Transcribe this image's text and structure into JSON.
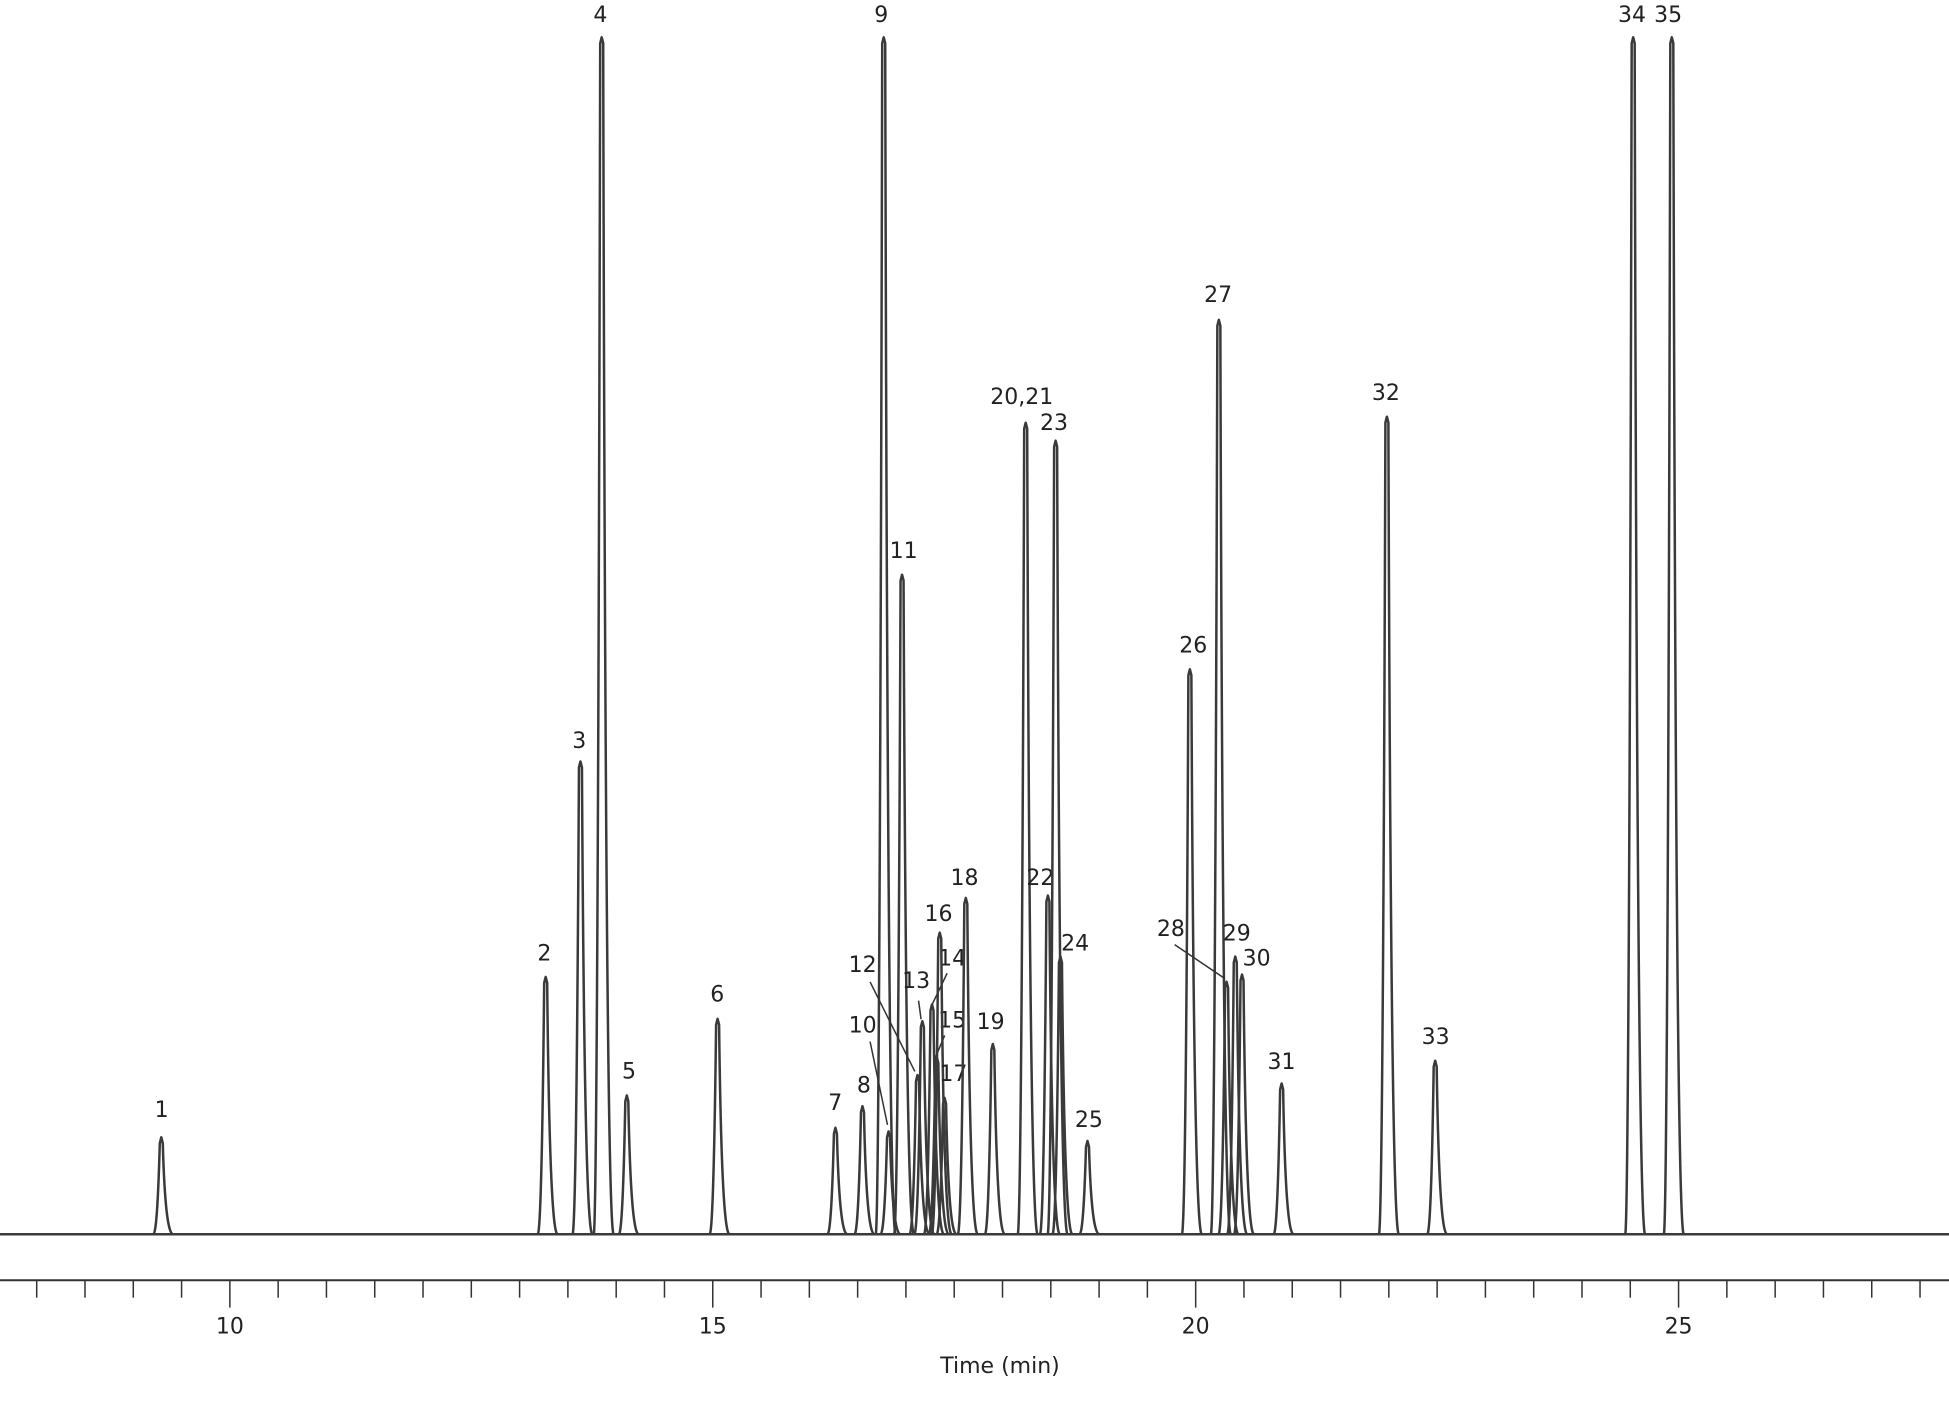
{
  "chart_data": {
    "type": "chromatogram",
    "x_label": "Time (min)",
    "xlim": [
      7.62,
      27.8
    ],
    "xticks": [
      10,
      15,
      20,
      25
    ],
    "xminorticks": [
      8,
      8.5,
      9,
      9.5,
      10.5,
      11,
      11.5,
      12,
      12.5,
      13,
      13.5,
      14,
      14.5,
      15.5,
      16,
      16.5,
      17,
      17.5,
      18,
      18.5,
      19,
      19.5,
      20.5,
      21,
      21.5,
      22,
      22.5,
      23,
      23.5,
      24,
      24.5,
      25.5,
      26,
      26.5,
      27,
      27.5
    ],
    "ylim": [
      0,
      100
    ],
    "series": [
      {
        "color": "#3a3a3a",
        "labels": [
          "1",
          "2",
          "3",
          "4",
          "5",
          "6",
          "7",
          "8",
          "9",
          "10",
          "11",
          "12",
          "13",
          "14",
          "15",
          "16",
          "17",
          "18",
          "19",
          "20,21",
          "22",
          "23",
          "24",
          "25",
          "26",
          "27",
          "28",
          "29",
          "30",
          "31",
          "32",
          "33",
          "34",
          "35"
        ],
        "x": [
          9.29,
          13.27,
          13.63,
          13.85,
          14.11,
          15.05,
          16.27,
          16.55,
          16.77,
          16.82,
          16.96,
          17.12,
          17.17,
          17.27,
          17.32,
          17.35,
          17.4,
          17.62,
          17.9,
          18.24,
          18.47,
          18.55,
          18.6,
          18.88,
          19.94,
          20.24,
          20.32,
          20.41,
          20.48,
          20.89,
          21.98,
          22.48,
          24.53,
          24.93
        ],
        "values": [
          8.1,
          21.5,
          39.5,
          100,
          11.6,
          18.0,
          8.9,
          10.7,
          100,
          8.6,
          55.1,
          13.3,
          17.8,
          19.2,
          14.8,
          25.2,
          11.4,
          28.1,
          15.9,
          67.8,
          28.3,
          66.3,
          23.2,
          7.8,
          47.2,
          76.4,
          21.1,
          23.2,
          21.7,
          12.6,
          68.3,
          14.5,
          100,
          100
        ]
      }
    ]
  }
}
